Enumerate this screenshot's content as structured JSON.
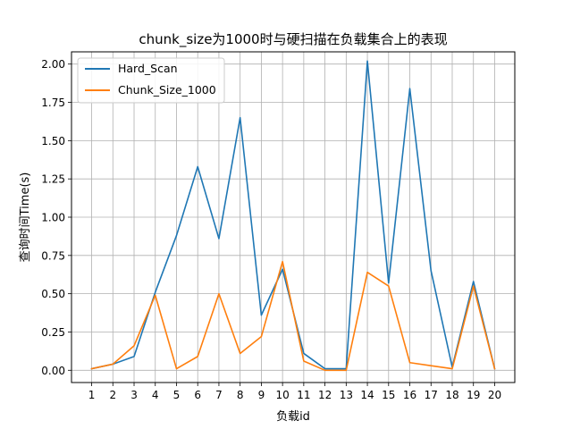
{
  "chart_data": {
    "type": "line",
    "title": "chunk_size为1000时与硬扫描在负载集合上的表现",
    "xlabel": "负载id",
    "ylabel": "查询时间Time(s)",
    "x": [
      1,
      2,
      3,
      4,
      5,
      6,
      7,
      8,
      9,
      10,
      11,
      12,
      13,
      14,
      15,
      16,
      17,
      18,
      19,
      20
    ],
    "ylim": [
      -0.08,
      2.08
    ],
    "yticks": [
      0.0,
      0.25,
      0.5,
      0.75,
      1.0,
      1.25,
      1.5,
      1.75,
      2.0
    ],
    "ytick_labels": [
      "0.00",
      "0.25",
      "0.50",
      "0.75",
      "1.00",
      "1.25",
      "1.50",
      "1.75",
      "2.00"
    ],
    "grid": true,
    "legend_position": "top-left",
    "series": [
      {
        "name": "Hard_Scan",
        "color": "#1f77b4",
        "values": [
          0.01,
          0.04,
          0.09,
          0.51,
          0.88,
          1.33,
          0.86,
          1.65,
          0.36,
          0.66,
          0.11,
          0.01,
          0.01,
          2.02,
          0.57,
          1.84,
          0.65,
          0.02,
          0.58,
          0.01
        ]
      },
      {
        "name": "Chunk_Size_1000",
        "color": "#ff7f0e",
        "values": [
          0.01,
          0.04,
          0.16,
          0.49,
          0.01,
          0.09,
          0.5,
          0.11,
          0.22,
          0.71,
          0.06,
          0.0,
          0.0,
          0.64,
          0.55,
          0.05,
          0.03,
          0.01,
          0.55,
          0.01
        ]
      }
    ]
  }
}
